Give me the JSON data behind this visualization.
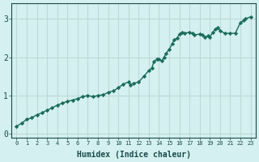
{
  "title": "",
  "xlabel": "Humidex (Indice chaleur)",
  "ylabel": "",
  "bg_color": "#d4f0f0",
  "line_color": "#1a6b5a",
  "marker_color": "#1a6b5a",
  "grid_color": "#c0d8d8",
  "axis_label_color": "#1a4a4a",
  "xlim": [
    -0.5,
    23.5
  ],
  "ylim": [
    -0.1,
    3.4
  ],
  "xticks": [
    0,
    1,
    2,
    3,
    4,
    5,
    6,
    7,
    8,
    9,
    10,
    11,
    12,
    13,
    14,
    15,
    16,
    17,
    18,
    19,
    20,
    21,
    22,
    23
  ],
  "yticks": [
    0,
    1,
    2,
    3
  ],
  "x": [
    0,
    0.5,
    1,
    1.5,
    2,
    2.5,
    3,
    3.5,
    4,
    4.5,
    5,
    5.5,
    6,
    6.5,
    7,
    7.5,
    8,
    8.5,
    9,
    9.5,
    10,
    10.5,
    11,
    11.2,
    11.5,
    12,
    12.5,
    13,
    13.3,
    13.5,
    13.8,
    14,
    14.3,
    14.5,
    14.7,
    15,
    15.3,
    15.5,
    15.8,
    16,
    16.3,
    16.5,
    17,
    17.3,
    17.5,
    18,
    18.3,
    18.5,
    18.8,
    19,
    19.3,
    19.5,
    19.8,
    20,
    20.5,
    21,
    21.5,
    22,
    22.3,
    22.5,
    23
  ],
  "y": [
    0.2,
    0.28,
    0.38,
    0.42,
    0.5,
    0.55,
    0.62,
    0.68,
    0.75,
    0.8,
    0.85,
    0.88,
    0.92,
    0.97,
    1.0,
    0.97,
    1.0,
    1.02,
    1.08,
    1.12,
    1.2,
    1.3,
    1.35,
    1.28,
    1.32,
    1.35,
    1.5,
    1.65,
    1.72,
    1.88,
    1.95,
    1.95,
    1.9,
    2.0,
    2.1,
    2.2,
    2.35,
    2.45,
    2.5,
    2.6,
    2.65,
    2.62,
    2.65,
    2.62,
    2.58,
    2.6,
    2.58,
    2.52,
    2.55,
    2.52,
    2.65,
    2.72,
    2.78,
    2.68,
    2.62,
    2.62,
    2.62,
    2.9,
    2.95,
    3.0,
    3.05
  ]
}
